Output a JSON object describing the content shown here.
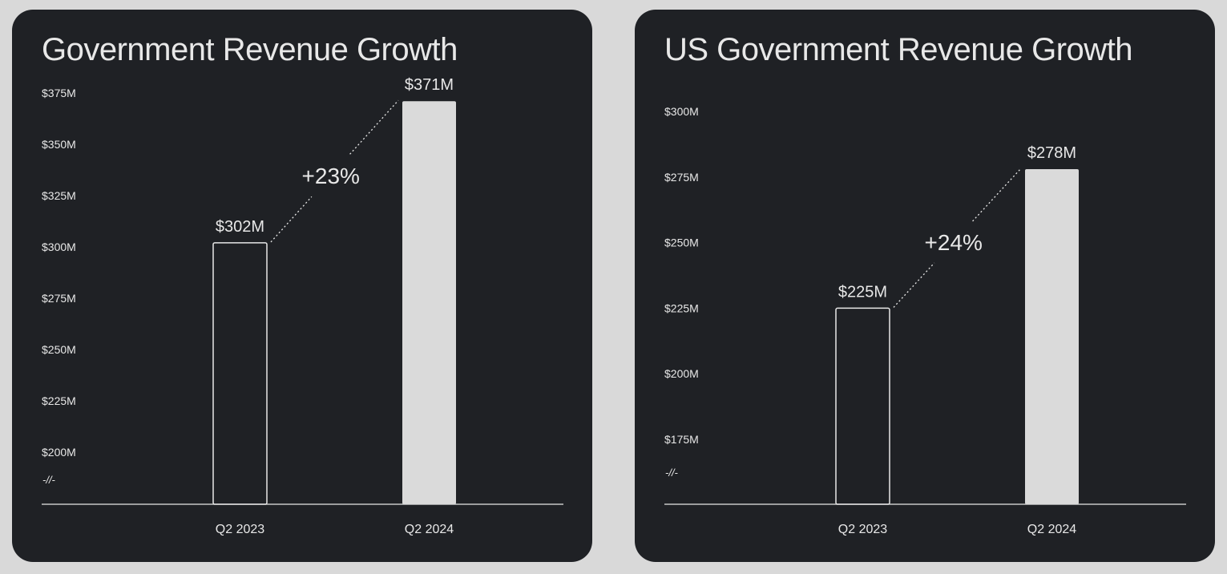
{
  "colors": {
    "page_background": "#d9d9d9",
    "card_background": "#1f2125",
    "text": "#e8e8e8",
    "bar_fill": "#dadada",
    "bar_outline": "#e8e8e8"
  },
  "axis_break_symbol": "-//-",
  "chart_data": [
    {
      "type": "bar",
      "title": "Government Revenue Growth",
      "categories": [
        "Q2 2023",
        "Q2 2024"
      ],
      "values": [
        302,
        371
      ],
      "value_labels": [
        "$302M",
        "$371M"
      ],
      "bar_styles": [
        "outline",
        "filled"
      ],
      "ylim": [
        200,
        375
      ],
      "yticks": [
        375,
        350,
        325,
        300,
        275,
        250,
        225,
        200
      ],
      "ytick_labels": [
        "$375M",
        "$350M",
        "$325M",
        "$300M",
        "$275M",
        "$250M",
        "$225M",
        "$200M"
      ],
      "growth_label": "+23%",
      "xlabel": "",
      "ylabel": "",
      "grid": false
    },
    {
      "type": "bar",
      "title": "US Government Revenue Growth",
      "categories": [
        "Q2 2023",
        "Q2 2024"
      ],
      "values": [
        225,
        278
      ],
      "value_labels": [
        "$225M",
        "$278M"
      ],
      "bar_styles": [
        "outline",
        "filled"
      ],
      "ylim": [
        175,
        300
      ],
      "yticks": [
        300,
        275,
        250,
        225,
        200,
        175
      ],
      "ytick_labels": [
        "$300M",
        "$275M",
        "$250M",
        "$225M",
        "$200M",
        "$175M"
      ],
      "growth_label": "+24%",
      "xlabel": "",
      "ylabel": "",
      "grid": false
    }
  ]
}
